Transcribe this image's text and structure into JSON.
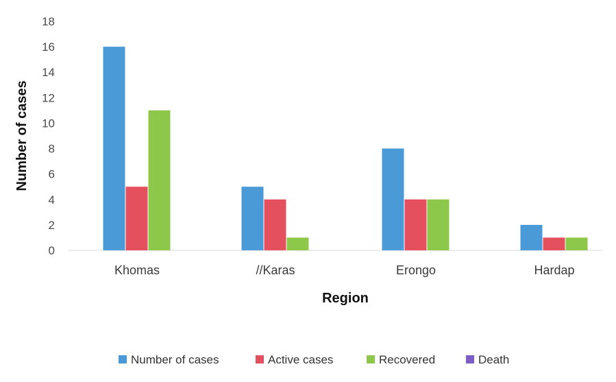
{
  "chart_data": {
    "type": "bar",
    "title": "",
    "xlabel": "Region",
    "ylabel": "Number of cases",
    "ylim": [
      0,
      18
    ],
    "yticks": [
      0,
      2,
      4,
      6,
      8,
      10,
      12,
      14,
      16,
      18
    ],
    "grid": false,
    "legend_position": "bottom",
    "categories": [
      "Khomas",
      "//Karas",
      "Erongo",
      "Hardap"
    ],
    "series": [
      {
        "name": "Number of cases",
        "color": "#4a9ad8",
        "values": [
          16,
          5,
          8,
          2
        ]
      },
      {
        "name": "Active cases",
        "color": "#e4505e",
        "values": [
          5,
          4,
          4,
          1
        ]
      },
      {
        "name": "Recovered",
        "color": "#8ec84a",
        "values": [
          11,
          1,
          4,
          1
        ]
      },
      {
        "name": "Death",
        "color": "#7b5fc4",
        "values": [
          0,
          0,
          0,
          0
        ]
      }
    ]
  }
}
